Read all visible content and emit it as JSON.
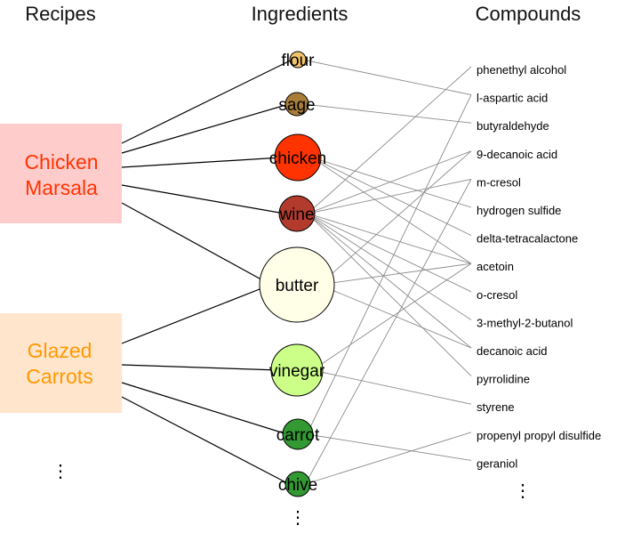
{
  "headers": {
    "recipes": "Recipes",
    "ingredients": "Ingredients",
    "compounds": "Compounds"
  },
  "recipes": [
    {
      "line1": "Chicken",
      "line2": "Marsala",
      "text_color": "#ff3300",
      "box_color": "#ffcccc"
    },
    {
      "line1": "Glazed",
      "line2": "Carrots",
      "text_color": "#ff9900",
      "box_color": "#ffe5cc"
    }
  ],
  "ingredients": [
    {
      "name": "flour",
      "color": "#f2c26b"
    },
    {
      "name": "sage",
      "color": "#a87d3a"
    },
    {
      "name": "chicken",
      "color": "#ff3300"
    },
    {
      "name": "wine",
      "color": "#b33b2e"
    },
    {
      "name": "butter",
      "color": "#ffffe8"
    },
    {
      "name": "vinegar",
      "color": "#ccff88"
    },
    {
      "name": "carrot",
      "color": "#339933"
    },
    {
      "name": "chive",
      "color": "#339933"
    }
  ],
  "compounds": [
    "phenethyl alcohol",
    "l-aspartic acid",
    "butyraldehyde",
    "9-decanoic acid",
    "m-cresol",
    "hydrogen sulfide",
    "delta-tetracalactone",
    "acetoin",
    "o-cresol",
    "3-methyl-2-butanol",
    "decanoic acid",
    "pyrrolidine",
    "styrene",
    "propenyl propyl disulfide",
    "geraniol"
  ],
  "ellipsis": "⋮",
  "recipe_links": [
    [
      "Chicken Marsala",
      "flour"
    ],
    [
      "Chicken Marsala",
      "sage"
    ],
    [
      "Chicken Marsala",
      "chicken"
    ],
    [
      "Chicken Marsala",
      "wine"
    ],
    [
      "Chicken Marsala",
      "butter"
    ],
    [
      "Glazed Carrots",
      "butter"
    ],
    [
      "Glazed Carrots",
      "vinegar"
    ],
    [
      "Glazed Carrots",
      "carrot"
    ],
    [
      "Glazed Carrots",
      "chive"
    ]
  ],
  "compound_links": [
    [
      "flour",
      "l-aspartic acid"
    ],
    [
      "sage",
      "butyraldehyde"
    ],
    [
      "chicken",
      "hydrogen sulfide"
    ],
    [
      "chicken",
      "delta-tetracalactone"
    ],
    [
      "chicken",
      "acetoin"
    ],
    [
      "wine",
      "phenethyl alcohol"
    ],
    [
      "wine",
      "9-decanoic acid"
    ],
    [
      "wine",
      "m-cresol"
    ],
    [
      "wine",
      "acetoin"
    ],
    [
      "wine",
      "o-cresol"
    ],
    [
      "wine",
      "3-methyl-2-butanol"
    ],
    [
      "wine",
      "decanoic acid"
    ],
    [
      "wine",
      "pyrrolidine"
    ],
    [
      "butter",
      "9-decanoic acid"
    ],
    [
      "butter",
      "acetoin"
    ],
    [
      "butter",
      "decanoic acid"
    ],
    [
      "vinegar",
      "acetoin"
    ],
    [
      "vinegar",
      "styrene"
    ],
    [
      "carrot",
      "l-aspartic acid"
    ],
    [
      "carrot",
      "geraniol"
    ],
    [
      "chive",
      "propenyl propyl disulfide"
    ],
    [
      "chive",
      "m-cresol"
    ]
  ]
}
